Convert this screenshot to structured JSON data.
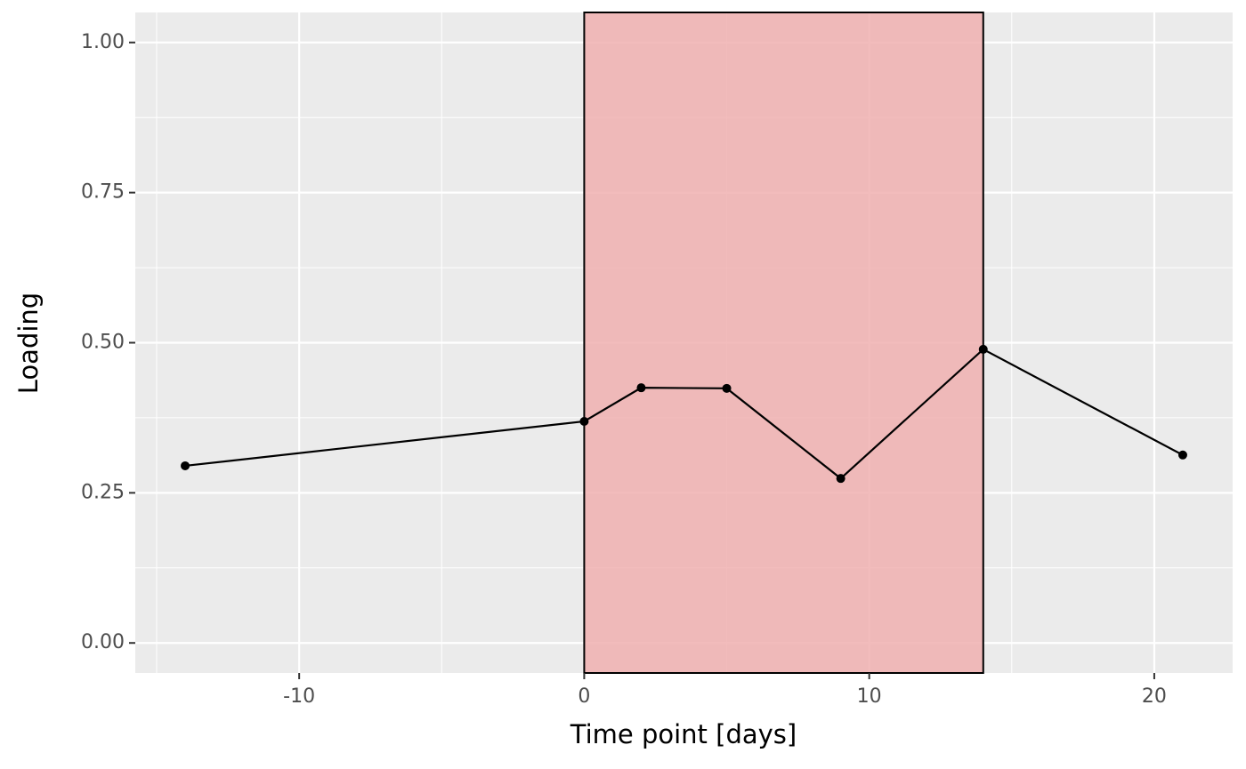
{
  "chart_data": {
    "type": "line",
    "x_label": "Time point [days]",
    "y_label": "Loading",
    "x": [
      -14,
      0,
      2,
      5,
      9,
      14,
      21
    ],
    "series": [
      {
        "color": "#000000",
        "values": [
          0.295,
          0.369,
          0.425,
          0.424,
          0.274,
          0.489,
          0.313
        ]
      }
    ],
    "shade": {
      "x": [
        0,
        14
      ],
      "color": "#f0b0b0"
    },
    "xlim": [
      -15.75,
      22.75
    ],
    "xticks": [
      -10,
      0,
      10,
      20
    ],
    "ylim": [
      -0.05,
      1.05
    ],
    "yticks": [
      {
        "value": 0,
        "label": "0.00"
      },
      {
        "value": 0.25,
        "label": "0.25"
      },
      {
        "value": 0.5,
        "label": "0.50"
      },
      {
        "value": 0.75,
        "label": "0.75"
      },
      {
        "value": 1,
        "label": "1.00"
      }
    ],
    "grid": true
  }
}
